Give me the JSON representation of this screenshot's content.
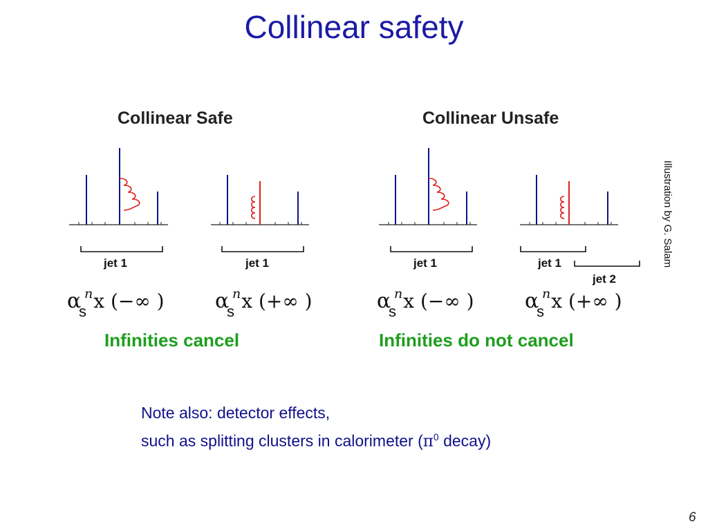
{
  "title": "Collinear safety",
  "panels": {
    "safe": {
      "heading": "Collinear Safe",
      "left": {
        "jet_label": "jet 1",
        "formula_sign": "−∞",
        "formula_sub": "s",
        "formula_sup": "n"
      },
      "right": {
        "jet_label": "jet 1",
        "formula_sign": "+∞",
        "formula_sub": "s",
        "formula_sup": "n"
      },
      "conclusion": "Infinities cancel"
    },
    "unsafe": {
      "heading": "Collinear Unsafe",
      "left": {
        "jet_label": "jet 1",
        "formula_sign": "−∞",
        "formula_sub": "s",
        "formula_sup": "n"
      },
      "right": {
        "jet_label": "jet 1",
        "jet2_label": "jet 2",
        "formula_sign": "+∞",
        "formula_sub": "s",
        "formula_sup": "n"
      },
      "conclusion": "Infinities do not cancel"
    }
  },
  "note": {
    "line1": "Note also: detector effects,",
    "line2_prefix": "such as splitting clusters in calorimeter (",
    "pi": "π",
    "pi_sup": "0",
    "line2_suffix": " decay)"
  },
  "credit": "Illustration by G. Salam",
  "page_number": "6",
  "colors": {
    "title": "#1a1aa6",
    "quark_line": "#10108c",
    "gluon": "#e02020",
    "green_text": "#1e9e1e"
  }
}
